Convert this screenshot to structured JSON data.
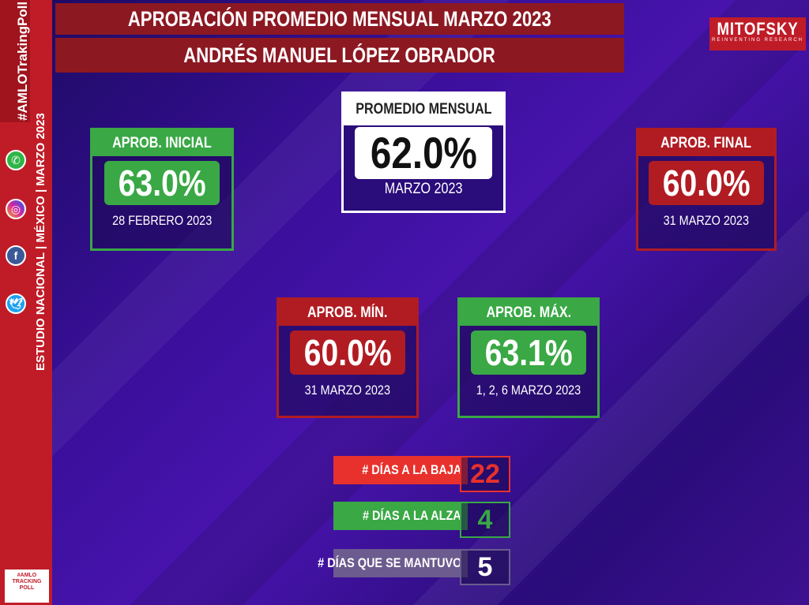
{
  "header": {
    "title": "APROBACIÓN PROMEDIO MENSUAL MARZO 2023",
    "subtitle": "ANDRÉS MANUEL LÓPEZ OBRADOR"
  },
  "brand": {
    "name": "MITOFSKY",
    "tagline": "REINVENTING RESEARCH"
  },
  "sidebar": {
    "hashtag": "#AMLOTrakingPoll",
    "study_part1": "ESTUDIO NACIONAL",
    "study_part2": "MÉXICO",
    "study_part3": "MARZO 2023",
    "separator": "|",
    "social_icons": [
      "whatsapp-icon",
      "instagram-icon",
      "facebook-icon",
      "twitter-icon"
    ],
    "logo_text": "#AMLO TRACKING POLL"
  },
  "cards": {
    "initial": {
      "label": "APROB. INICIAL",
      "value": "63.0%",
      "date": "28 FEBRERO 2023"
    },
    "average": {
      "label": "PROMEDIO MENSUAL",
      "value": "62.0%",
      "date": "MARZO 2023"
    },
    "final": {
      "label": "APROB. FINAL",
      "value": "60.0%",
      "date": "31 MARZO 2023"
    },
    "min": {
      "label": "APROB. MÍN.",
      "value": "60.0%",
      "date": "31 MARZO 2023"
    },
    "max": {
      "label": "APROB. MÁX.",
      "value": "63.1%",
      "date": "1, 2, 6 MARZO 2023"
    }
  },
  "counters": {
    "down": {
      "label": "# DÍAS A LA BAJA",
      "value": "22"
    },
    "up": {
      "label": "# DÍAS A LA ALZA",
      "value": "4"
    },
    "same": {
      "label": "# DÍAS QUE SE MANTUVO",
      "value": "5"
    }
  },
  "colors": {
    "green": "#39a845",
    "red": "#b01c22",
    "bright_red": "#e8312c",
    "purple": "#3a0f9a",
    "gray": "#6b5b8e"
  }
}
